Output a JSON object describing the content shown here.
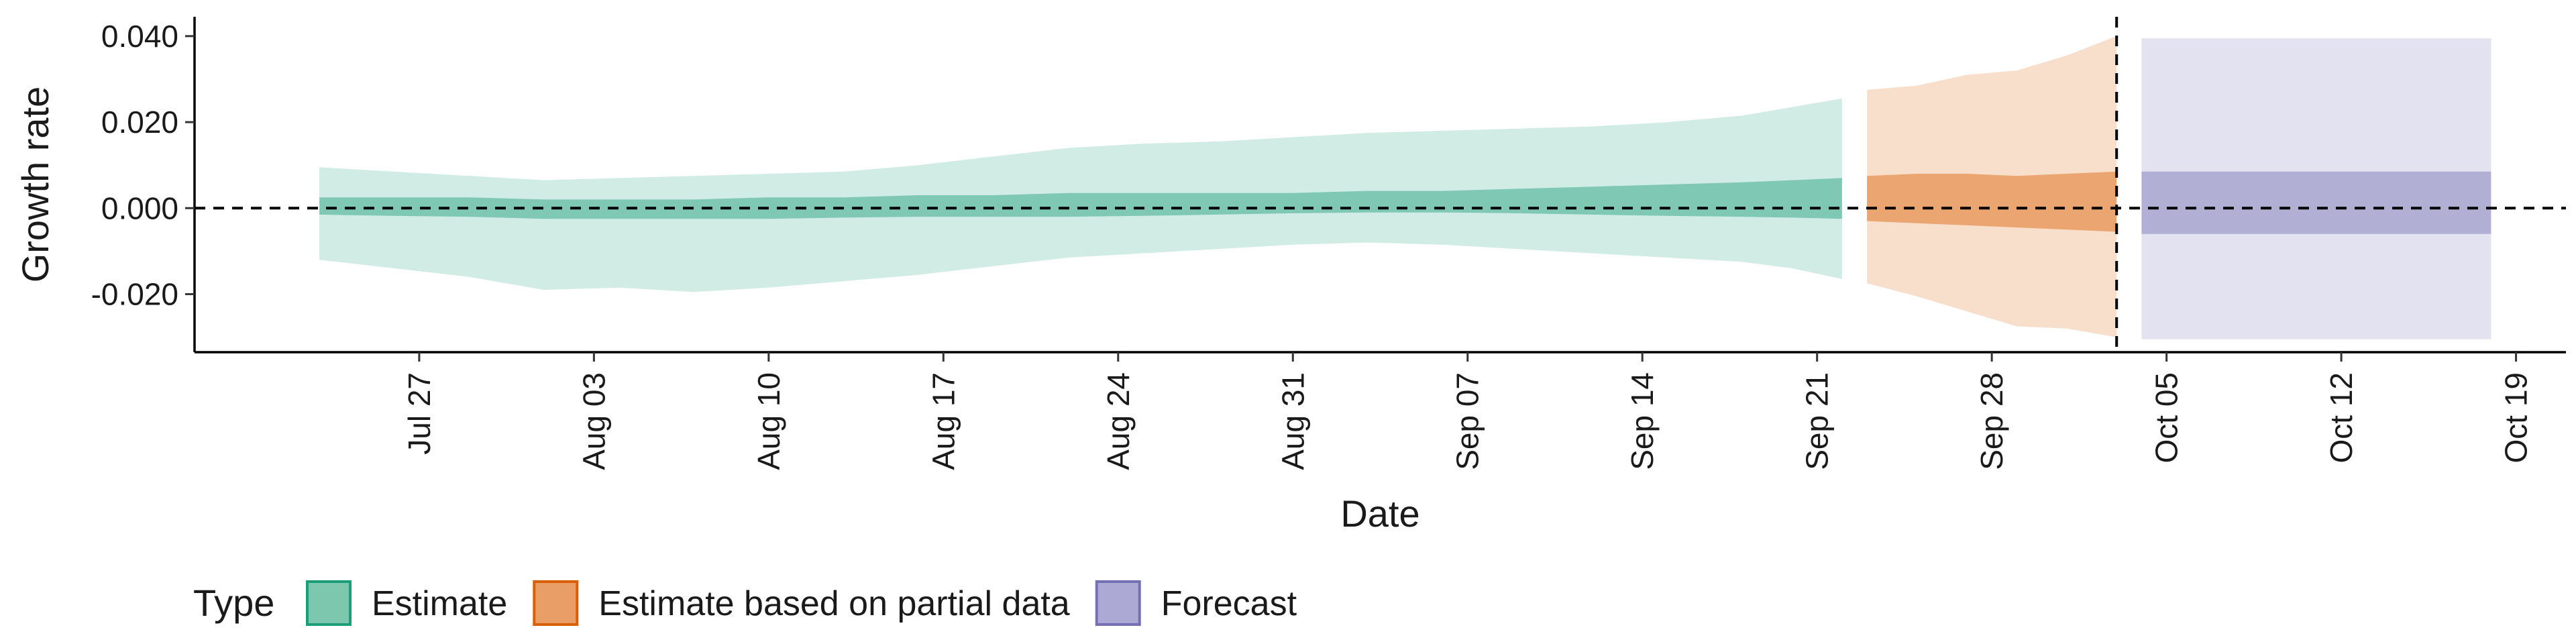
{
  "chart_data": {
    "type": "area",
    "xlabel": "Date",
    "ylabel": "Growth rate",
    "ylim": [
      -0.0335,
      0.0445
    ],
    "xlim": [
      "2020-07-18",
      "2020-10-21"
    ],
    "y_ticks": [
      {
        "value": -0.02,
        "label": "-0.020"
      },
      {
        "value": 0.0,
        "label": "0.000"
      },
      {
        "value": 0.02,
        "label": "0.020"
      },
      {
        "value": 0.04,
        "label": "0.040"
      }
    ],
    "x_ticks": [
      {
        "date": "2020-07-27",
        "label": "Jul 27"
      },
      {
        "date": "2020-08-03",
        "label": "Aug 03"
      },
      {
        "date": "2020-08-10",
        "label": "Aug 10"
      },
      {
        "date": "2020-08-17",
        "label": "Aug 17"
      },
      {
        "date": "2020-08-24",
        "label": "Aug 24"
      },
      {
        "date": "2020-08-31",
        "label": "Aug 31"
      },
      {
        "date": "2020-09-07",
        "label": "Sep 07"
      },
      {
        "date": "2020-09-14",
        "label": "Sep 14"
      },
      {
        "date": "2020-09-21",
        "label": "Sep 21"
      },
      {
        "date": "2020-09-28",
        "label": "Sep 28"
      },
      {
        "date": "2020-10-05",
        "label": "Oct 05"
      },
      {
        "date": "2020-10-12",
        "label": "Oct 12"
      },
      {
        "date": "2020-10-19",
        "label": "Oct 19"
      }
    ],
    "reference_lines": [
      {
        "axis": "y",
        "value": 0.0,
        "style": "dashed"
      },
      {
        "axis": "x",
        "value": "2020-10-03",
        "style": "dashed"
      }
    ],
    "series": [
      {
        "name": "Estimate",
        "color": "#1b9e77",
        "points": [
          {
            "x": "2020-07-23",
            "outer": [
              -0.012,
              0.0095
            ],
            "inner": [
              -0.0015,
              0.0025
            ]
          },
          {
            "x": "2020-07-26",
            "outer": [
              -0.014,
              0.0085
            ],
            "inner": [
              -0.0018,
              0.0025
            ]
          },
          {
            "x": "2020-07-29",
            "outer": [
              -0.016,
              0.0075
            ],
            "inner": [
              -0.002,
              0.0025
            ]
          },
          {
            "x": "2020-08-01",
            "outer": [
              -0.019,
              0.0065
            ],
            "inner": [
              -0.0025,
              0.002
            ]
          },
          {
            "x": "2020-08-04",
            "outer": [
              -0.0185,
              0.007
            ],
            "inner": [
              -0.0025,
              0.002
            ]
          },
          {
            "x": "2020-08-07",
            "outer": [
              -0.0195,
              0.0075
            ],
            "inner": [
              -0.0025,
              0.002
            ]
          },
          {
            "x": "2020-08-10",
            "outer": [
              -0.0185,
              0.008
            ],
            "inner": [
              -0.0025,
              0.0025
            ]
          },
          {
            "x": "2020-08-13",
            "outer": [
              -0.017,
              0.0085
            ],
            "inner": [
              -0.0022,
              0.0025
            ]
          },
          {
            "x": "2020-08-16",
            "outer": [
              -0.0155,
              0.01
            ],
            "inner": [
              -0.002,
              0.003
            ]
          },
          {
            "x": "2020-08-19",
            "outer": [
              -0.0135,
              0.012
            ],
            "inner": [
              -0.002,
              0.003
            ]
          },
          {
            "x": "2020-08-22",
            "outer": [
              -0.0115,
              0.014
            ],
            "inner": [
              -0.002,
              0.0035
            ]
          },
          {
            "x": "2020-08-25",
            "outer": [
              -0.0105,
              0.015
            ],
            "inner": [
              -0.0018,
              0.0035
            ]
          },
          {
            "x": "2020-08-28",
            "outer": [
              -0.0095,
              0.0155
            ],
            "inner": [
              -0.0015,
              0.0035
            ]
          },
          {
            "x": "2020-08-31",
            "outer": [
              -0.0085,
              0.0165
            ],
            "inner": [
              -0.0012,
              0.0035
            ]
          },
          {
            "x": "2020-09-03",
            "outer": [
              -0.008,
              0.0175
            ],
            "inner": [
              -0.001,
              0.004
            ]
          },
          {
            "x": "2020-09-06",
            "outer": [
              -0.0085,
              0.018
            ],
            "inner": [
              -0.001,
              0.004
            ]
          },
          {
            "x": "2020-09-09",
            "outer": [
              -0.0095,
              0.0185
            ],
            "inner": [
              -0.0012,
              0.0045
            ]
          },
          {
            "x": "2020-09-12",
            "outer": [
              -0.0105,
              0.019
            ],
            "inner": [
              -0.0015,
              0.005
            ]
          },
          {
            "x": "2020-09-15",
            "outer": [
              -0.0115,
              0.02
            ],
            "inner": [
              -0.0018,
              0.0055
            ]
          },
          {
            "x": "2020-09-18",
            "outer": [
              -0.0125,
              0.0215
            ],
            "inner": [
              -0.002,
              0.006
            ]
          },
          {
            "x": "2020-09-20",
            "outer": [
              -0.014,
              0.0235
            ],
            "inner": [
              -0.0022,
              0.0065
            ]
          },
          {
            "x": "2020-09-22",
            "outer": [
              -0.0165,
              0.0255
            ],
            "inner": [
              -0.0025,
              0.007
            ]
          }
        ]
      },
      {
        "name": "Estimate based on partial data",
        "color": "#d95f02",
        "points": [
          {
            "x": "2020-09-23",
            "outer": [
              -0.0175,
              0.0275
            ],
            "inner": [
              -0.003,
              0.0075
            ]
          },
          {
            "x": "2020-09-25",
            "outer": [
              -0.0205,
              0.0285
            ],
            "inner": [
              -0.0035,
              0.008
            ]
          },
          {
            "x": "2020-09-27",
            "outer": [
              -0.024,
              0.031
            ],
            "inner": [
              -0.004,
              0.008
            ]
          },
          {
            "x": "2020-09-29",
            "outer": [
              -0.0275,
              0.032
            ],
            "inner": [
              -0.0045,
              0.0075
            ]
          },
          {
            "x": "2020-10-01",
            "outer": [
              -0.028,
              0.0355
            ],
            "inner": [
              -0.005,
              0.008
            ]
          },
          {
            "x": "2020-10-03",
            "outer": [
              -0.03,
              0.04
            ],
            "inner": [
              -0.0055,
              0.0085
            ]
          }
        ]
      },
      {
        "name": "Forecast",
        "color": "#7570b3",
        "points": [
          {
            "x": "2020-10-04",
            "outer": [
              -0.0305,
              0.0395
            ],
            "inner": [
              -0.006,
              0.0085
            ]
          },
          {
            "x": "2020-10-18",
            "outer": [
              -0.0305,
              0.0395
            ],
            "inner": [
              -0.006,
              0.0085
            ]
          }
        ]
      }
    ],
    "legend": {
      "title": "Type",
      "position": "bottom-left",
      "items": [
        {
          "label": "Estimate",
          "fill": "#7cc7ae",
          "border": "#1b9e77"
        },
        {
          "label": "Estimate based on partial data",
          "fill": "#ea9e67",
          "border": "#d95f02"
        },
        {
          "label": "Forecast",
          "fill": "#aca9d4",
          "border": "#7570b3"
        }
      ]
    },
    "grid": false
  }
}
